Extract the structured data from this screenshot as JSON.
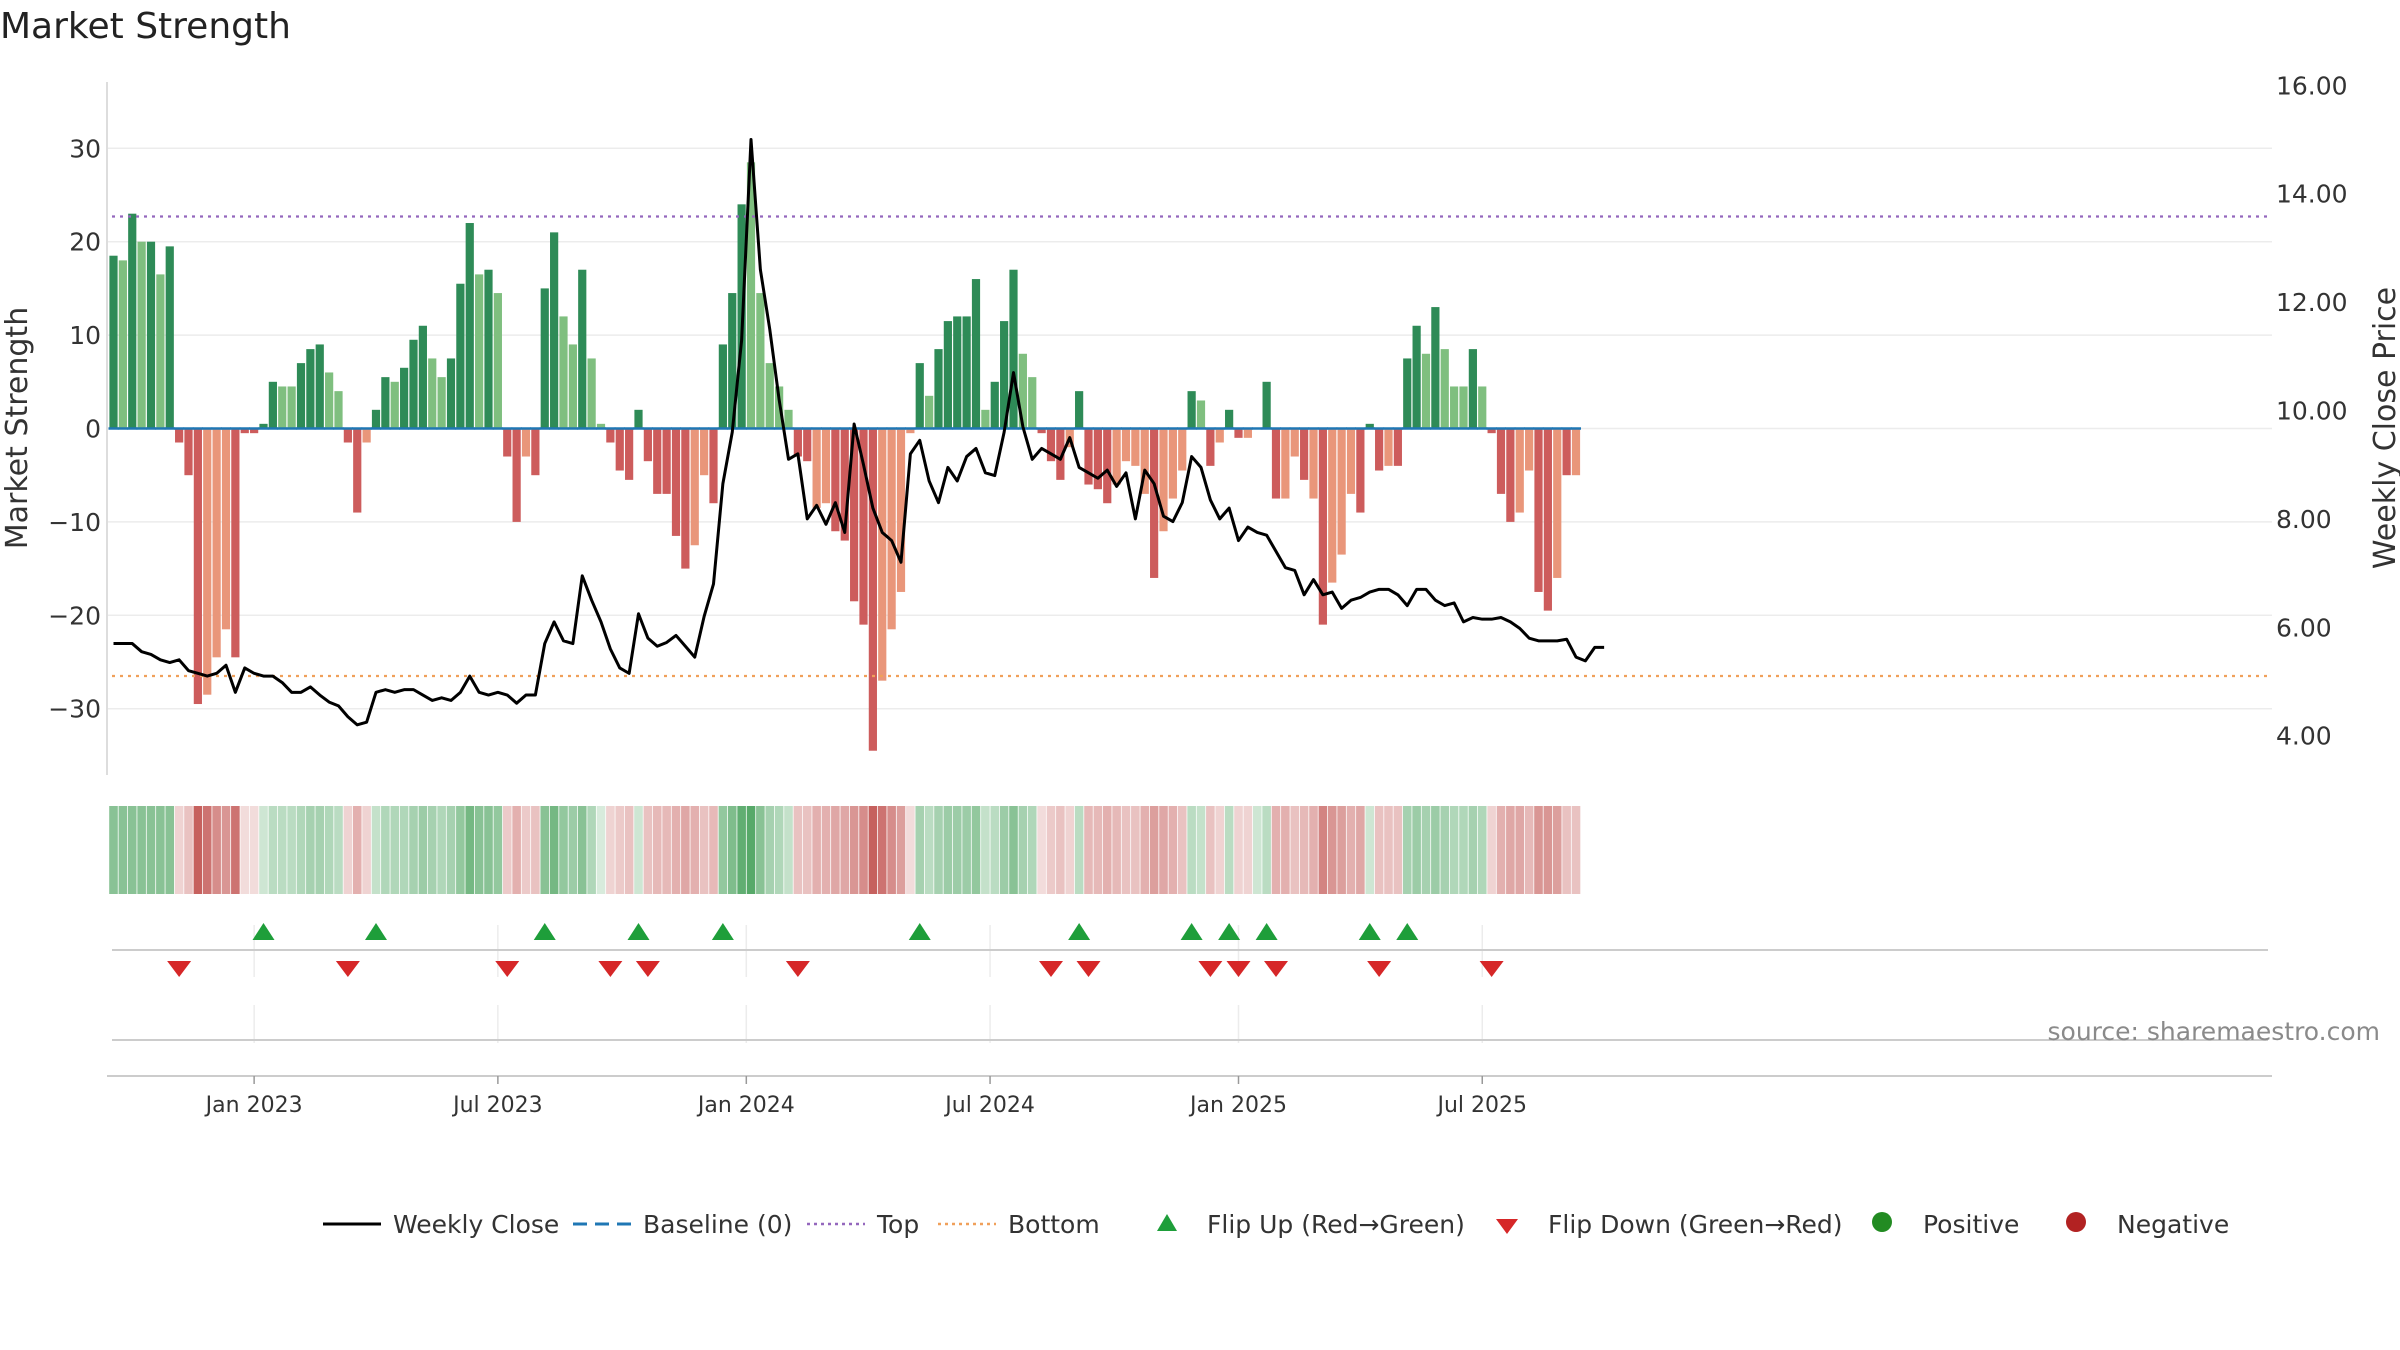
{
  "chart_data": {
    "type": "bar",
    "title": "Market Strength",
    "ylabel": "Market Strength",
    "y2label": "Weekly Close Price",
    "ylim": [
      -37,
      37
    ],
    "y2lim": [
      3.0,
      16.0
    ],
    "yticks": [
      30,
      20,
      10,
      0,
      -10,
      -20,
      -30
    ],
    "ytick_labels": [
      "30",
      "20",
      "10",
      "0",
      "−10",
      "−20",
      "−30"
    ],
    "y2ticks": [
      16,
      14,
      12,
      10,
      8,
      6,
      4
    ],
    "y2tick_labels": [
      "16.00",
      "14.00",
      "12.00",
      "10.00",
      "8.00",
      "6.00",
      "4.00"
    ],
    "top_level": 22.7,
    "bottom_level": -26.5,
    "date_ticks": [
      {
        "label": "Jan 2023",
        "week": 15
      },
      {
        "label": "Jul 2023",
        "week": 41
      },
      {
        "label": "Jan 2024",
        "week": 67.5
      },
      {
        "label": "Jul 2024",
        "week": 93.5
      },
      {
        "label": "Jan 2025",
        "week": 120
      },
      {
        "label": "Jul 2025",
        "week": 146
      }
    ],
    "strength": [
      18.5,
      18,
      23,
      20,
      20,
      16.5,
      19.5,
      -1.5,
      -5,
      -29.5,
      -28.5,
      -24.5,
      -21.5,
      -24.5,
      -0.5,
      -0.5,
      0.5,
      5,
      4.5,
      4.5,
      7,
      8.5,
      9,
      6,
      4,
      -1.5,
      -9,
      -1.5,
      2,
      5.5,
      5,
      6.5,
      9.5,
      11,
      7.5,
      5.5,
      7.5,
      15.5,
      22,
      16.5,
      17,
      14.5,
      -3,
      -10,
      -3,
      -5,
      15,
      21,
      12,
      9,
      17,
      7.5,
      0.5,
      -1.5,
      -4.5,
      -5.5,
      2,
      -3.5,
      -7,
      -7,
      -11.5,
      -15,
      -12.5,
      -5,
      -8,
      9,
      14.5,
      24,
      28.5,
      14.5,
      7,
      4.5,
      2,
      -3,
      -3.5,
      -8.5,
      -8,
      -11,
      -12,
      -18.5,
      -21,
      -34.5,
      -27,
      -21.5,
      -17.5,
      -0.5,
      7,
      3.5,
      8.5,
      11.5,
      12,
      12,
      16,
      2,
      5,
      11.5,
      17,
      8,
      5.5,
      -0.5,
      -3.5,
      -5.5,
      -2,
      4,
      -6,
      -6.5,
      -8,
      -6,
      -3.5,
      -4,
      -7,
      -16,
      -11,
      -7.5,
      -4.5,
      4,
      3,
      -4,
      -1.5,
      2,
      -1,
      -1,
      0,
      5,
      -7.5,
      -7.5,
      -3,
      -5.5,
      -7.5,
      -21,
      -16.5,
      -13.5,
      -7,
      -9,
      0.5,
      -4.5,
      -4,
      -4,
      7.5,
      11,
      8,
      13,
      8.5,
      4.5,
      4.5,
      8.5,
      4.5,
      -0.5,
      -7,
      -10,
      -9,
      -4.5,
      -17.5,
      -19.5,
      -16,
      -5,
      -5
    ],
    "strength_colors": [
      "#2e8b57",
      "#7fbf7f",
      "#2e8b57",
      "#7fbf7f",
      "#2e8b57",
      "#7fbf7f",
      "#2e8b57",
      "#cd5c5c",
      "#cd5c5c",
      "#cd5c5c",
      "#e9967a",
      "#e9967a",
      "#e9967a",
      "#cd5c5c",
      "#cd5c5c",
      "#cd5c5c",
      "#2e8b57",
      "#2e8b57",
      "#7fbf7f",
      "#7fbf7f",
      "#2e8b57",
      "#2e8b57",
      "#2e8b57",
      "#7fbf7f",
      "#7fbf7f",
      "#cd5c5c",
      "#cd5c5c",
      "#e9967a",
      "#2e8b57",
      "#2e8b57",
      "#7fbf7f",
      "#2e8b57",
      "#2e8b57",
      "#2e8b57",
      "#7fbf7f",
      "#7fbf7f",
      "#2e8b57",
      "#2e8b57",
      "#2e8b57",
      "#7fbf7f",
      "#2e8b57",
      "#7fbf7f",
      "#cd5c5c",
      "#cd5c5c",
      "#e9967a",
      "#cd5c5c",
      "#2e8b57",
      "#2e8b57",
      "#7fbf7f",
      "#7fbf7f",
      "#2e8b57",
      "#7fbf7f",
      "#7fbf7f",
      "#cd5c5c",
      "#cd5c5c",
      "#cd5c5c",
      "#2e8b57",
      "#cd5c5c",
      "#cd5c5c",
      "#cd5c5c",
      "#cd5c5c",
      "#cd5c5c",
      "#e9967a",
      "#e9967a",
      "#cd5c5c",
      "#2e8b57",
      "#2e8b57",
      "#2e8b57",
      "#7fbf7f",
      "#7fbf7f",
      "#7fbf7f",
      "#7fbf7f",
      "#7fbf7f",
      "#cd5c5c",
      "#cd5c5c",
      "#e9967a",
      "#e9967a",
      "#cd5c5c",
      "#cd5c5c",
      "#cd5c5c",
      "#cd5c5c",
      "#cd5c5c",
      "#e9967a",
      "#e9967a",
      "#e9967a",
      "#e9967a",
      "#2e8b57",
      "#7fbf7f",
      "#2e8b57",
      "#2e8b57",
      "#2e8b57",
      "#2e8b57",
      "#2e8b57",
      "#7fbf7f",
      "#2e8b57",
      "#2e8b57",
      "#2e8b57",
      "#7fbf7f",
      "#7fbf7f",
      "#cd5c5c",
      "#cd5c5c",
      "#cd5c5c",
      "#e9967a",
      "#2e8b57",
      "#cd5c5c",
      "#cd5c5c",
      "#cd5c5c",
      "#e9967a",
      "#e9967a",
      "#e9967a",
      "#e9967a",
      "#cd5c5c",
      "#e9967a",
      "#e9967a",
      "#e9967a",
      "#2e8b57",
      "#7fbf7f",
      "#cd5c5c",
      "#e9967a",
      "#2e8b57",
      "#cd5c5c",
      "#e9967a",
      "#7fbf7f",
      "#2e8b57",
      "#cd5c5c",
      "#e9967a",
      "#e9967a",
      "#cd5c5c",
      "#e9967a",
      "#cd5c5c",
      "#e9967a",
      "#e9967a",
      "#e9967a",
      "#cd5c5c",
      "#2e8b57",
      "#cd5c5c",
      "#e9967a",
      "#cd5c5c",
      "#2e8b57",
      "#2e8b57",
      "#7fbf7f",
      "#2e8b57",
      "#7fbf7f",
      "#7fbf7f",
      "#7fbf7f",
      "#2e8b57",
      "#7fbf7f",
      "#cd5c5c",
      "#cd5c5c",
      "#cd5c5c",
      "#e9967a",
      "#e9967a",
      "#cd5c5c",
      "#cd5c5c",
      "#e9967a",
      "#cd5c5c",
      "#e9967a"
    ],
    "close": [
      5.7,
      5.7,
      5.7,
      5.55,
      5.5,
      5.4,
      5.35,
      5.4,
      5.2,
      5.15,
      5.1,
      5.15,
      5.3,
      4.8,
      5.25,
      5.15,
      5.1,
      5.1,
      4.98,
      4.8,
      4.8,
      4.9,
      4.75,
      4.62,
      4.55,
      4.35,
      4.2,
      4.25,
      4.8,
      4.85,
      4.8,
      4.85,
      4.85,
      4.75,
      4.65,
      4.7,
      4.65,
      4.8,
      5.1,
      4.8,
      4.75,
      4.8,
      4.75,
      4.6,
      4.75,
      4.75,
      5.7,
      6.1,
      5.75,
      5.7,
      6.95,
      6.5,
      6.1,
      5.6,
      5.25,
      5.15,
      6.25,
      5.8,
      5.65,
      5.72,
      5.85,
      5.65,
      5.45,
      6.2,
      6.8,
      8.65,
      9.6,
      11.3,
      15.0,
      12.6,
      11.5,
      10.2,
      9.1,
      9.2,
      8.0,
      8.25,
      7.9,
      8.3,
      7.75,
      9.75,
      9.0,
      8.2,
      7.75,
      7.6,
      7.2,
      9.2,
      9.45,
      8.7,
      8.3,
      8.95,
      8.7,
      9.15,
      9.3,
      8.85,
      8.8,
      9.6,
      10.7,
      9.7,
      9.1,
      9.3,
      9.2,
      9.1,
      9.5,
      8.95,
      8.85,
      8.75,
      8.9,
      8.6,
      8.85,
      8.0,
      8.9,
      8.65,
      8.05,
      7.95,
      8.3,
      9.15,
      8.95,
      8.35,
      8.0,
      8.2,
      7.6,
      7.85,
      7.75,
      7.7,
      7.4,
      7.1,
      7.05,
      6.6,
      6.88,
      6.6,
      6.65,
      6.35,
      6.5,
      6.55,
      6.65,
      6.7,
      6.7,
      6.6,
      6.4,
      6.7,
      6.7,
      6.5,
      6.4,
      6.45,
      6.1,
      6.18,
      6.15,
      6.15,
      6.18,
      6.1,
      5.98,
      5.8,
      5.75,
      5.75,
      5.75,
      5.78,
      5.45,
      5.38,
      5.63,
      5.63
    ],
    "heat_alpha": [
      0.6,
      0.6,
      0.6,
      0.6,
      0.6,
      0.6,
      0.6,
      0.25,
      0.35,
      0.9,
      0.8,
      0.65,
      0.6,
      0.8,
      0.2,
      0.2,
      0.25,
      0.35,
      0.35,
      0.35,
      0.4,
      0.45,
      0.45,
      0.4,
      0.35,
      0.25,
      0.45,
      0.25,
      0.3,
      0.4,
      0.4,
      0.4,
      0.45,
      0.5,
      0.45,
      0.4,
      0.45,
      0.55,
      0.7,
      0.6,
      0.6,
      0.55,
      0.3,
      0.45,
      0.3,
      0.35,
      0.6,
      0.7,
      0.55,
      0.5,
      0.6,
      0.4,
      0.2,
      0.25,
      0.3,
      0.35,
      0.25,
      0.35,
      0.4,
      0.4,
      0.45,
      0.5,
      0.45,
      0.35,
      0.4,
      0.55,
      0.65,
      0.8,
      0.85,
      0.6,
      0.45,
      0.4,
      0.3,
      0.35,
      0.35,
      0.45,
      0.45,
      0.5,
      0.5,
      0.6,
      0.65,
      0.9,
      0.8,
      0.65,
      0.55,
      0.2,
      0.45,
      0.35,
      0.45,
      0.5,
      0.5,
      0.5,
      0.55,
      0.3,
      0.35,
      0.5,
      0.6,
      0.45,
      0.4,
      0.2,
      0.3,
      0.35,
      0.25,
      0.35,
      0.4,
      0.4,
      0.45,
      0.4,
      0.35,
      0.35,
      0.45,
      0.55,
      0.5,
      0.45,
      0.35,
      0.35,
      0.3,
      0.35,
      0.25,
      0.35,
      0.25,
      0.25,
      0.25,
      0.35,
      0.45,
      0.45,
      0.35,
      0.4,
      0.45,
      0.7,
      0.6,
      0.55,
      0.45,
      0.5,
      0.25,
      0.35,
      0.35,
      0.35,
      0.45,
      0.5,
      0.45,
      0.5,
      0.45,
      0.4,
      0.4,
      0.45,
      0.4,
      0.25,
      0.45,
      0.5,
      0.5,
      0.4,
      0.6,
      0.6,
      0.55,
      0.35,
      0.35
    ],
    "flip_up": [
      16,
      28,
      46,
      56,
      65,
      86,
      103,
      115,
      119,
      123,
      134,
      138
    ],
    "flip_down": [
      7,
      25,
      42,
      53,
      57,
      73,
      100,
      104,
      117,
      120,
      124,
      135,
      147
    ]
  },
  "legend": [
    {
      "label": "Weekly Close",
      "icon": "line-solid",
      "color": "#000000"
    },
    {
      "label": "Baseline (0)",
      "icon": "line-dashed",
      "color": "#1f77b4"
    },
    {
      "label": "Top",
      "icon": "line-dotted",
      "color": "#9467bd"
    },
    {
      "label": "Bottom",
      "icon": "line-dotted",
      "color": "#f0a05a"
    },
    {
      "label": "Flip Up (Red→Green)",
      "icon": "triangle-up",
      "color": "#1e9e3a"
    },
    {
      "label": "Flip Down (Green→Red)",
      "icon": "triangle-down",
      "color": "#d62728"
    },
    {
      "label": "Positive",
      "icon": "circle",
      "color": "#228b22"
    },
    {
      "label": "Negative",
      "icon": "circle",
      "color": "#b22222"
    }
  ],
  "source": "source: sharemaestro.com",
  "colors": {
    "green_dark": "#2e8b57",
    "green_light": "#7fbf7f",
    "red_dark": "#cd5c5c",
    "red_light": "#e9967a",
    "heat_green": "#3a9a4f",
    "heat_red": "#c0504d",
    "baseline": "#1f77b4",
    "top": "#9467bd",
    "bottom": "#f0a05a",
    "flip_up": "#1e9e3a",
    "flip_down": "#d62728"
  }
}
